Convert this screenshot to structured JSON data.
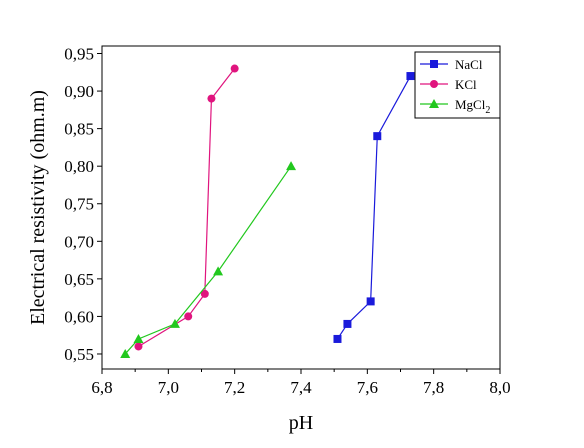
{
  "chart_data": {
    "type": "line",
    "title": "",
    "xlabel": "pH",
    "ylabel": "Electrical resistivity (ohm.m)",
    "xlim": [
      6.8,
      8.0
    ],
    "ylim": [
      0.53,
      0.96
    ],
    "x_ticks": [
      6.8,
      7.0,
      7.2,
      7.4,
      7.6,
      7.8,
      8.0
    ],
    "x_tick_labels": [
      "6,8",
      "7,0",
      "7,2",
      "7,4",
      "7,6",
      "7,8",
      "8,0"
    ],
    "y_ticks": [
      0.55,
      0.6,
      0.65,
      0.7,
      0.75,
      0.8,
      0.85,
      0.9,
      0.95
    ],
    "y_tick_labels": [
      "0,55",
      "0,60",
      "0,65",
      "0,70",
      "0,75",
      "0,80",
      "0,85",
      "0,90",
      "0,95"
    ],
    "grid": false,
    "legend_position": "top-right",
    "series": [
      {
        "name": "NaCl",
        "color": "#1a1adb",
        "marker": "square",
        "points": [
          {
            "x": 7.51,
            "y": 0.57
          },
          {
            "x": 7.54,
            "y": 0.59
          },
          {
            "x": 7.61,
            "y": 0.62
          },
          {
            "x": 7.63,
            "y": 0.84
          },
          {
            "x": 7.73,
            "y": 0.92
          }
        ]
      },
      {
        "name": "KCl",
        "color": "#e0147e",
        "marker": "circle",
        "points": [
          {
            "x": 6.91,
            "y": 0.56
          },
          {
            "x": 7.06,
            "y": 0.6
          },
          {
            "x": 7.11,
            "y": 0.63
          },
          {
            "x": 7.13,
            "y": 0.89
          },
          {
            "x": 7.2,
            "y": 0.93
          }
        ]
      },
      {
        "name": "MgCl",
        "name_subscript": "2",
        "color": "#22c81e",
        "marker": "triangle",
        "points": [
          {
            "x": 6.87,
            "y": 0.55
          },
          {
            "x": 6.91,
            "y": 0.57
          },
          {
            "x": 7.02,
            "y": 0.59
          },
          {
            "x": 7.15,
            "y": 0.66
          },
          {
            "x": 7.37,
            "y": 0.8
          }
        ]
      }
    ]
  }
}
